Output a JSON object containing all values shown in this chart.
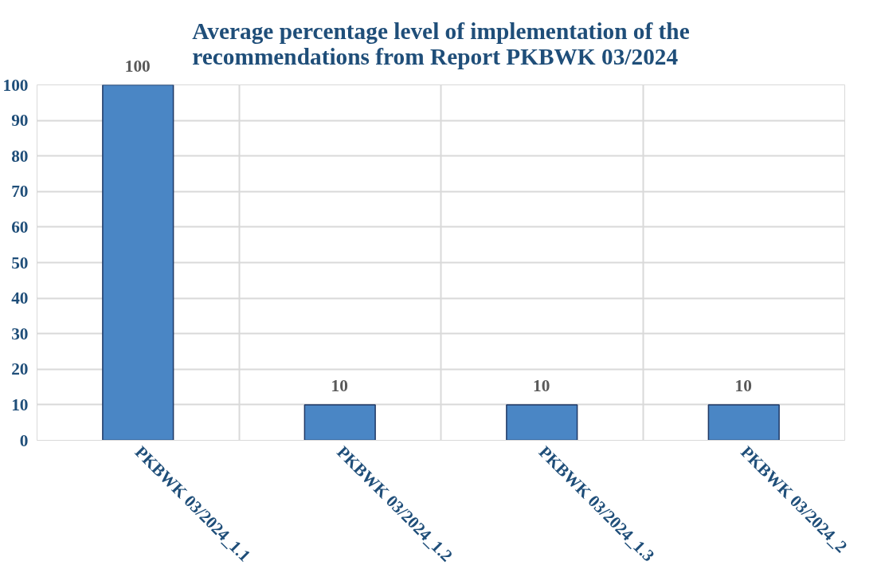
{
  "chart_data": {
    "type": "bar",
    "title": "Average percentage level of implementation of the\nrecommendations from Report PKBWK 03/2024",
    "categories": [
      "PKBWK 03/2024_1.1",
      "PKBWK 03/2024_1.2",
      "PKBWK 03/2024_1.3",
      "PKBWK 03/2024_2"
    ],
    "values": [
      100,
      10,
      10,
      10
    ],
    "color": "#4a86c5",
    "ylim": [
      0,
      100
    ],
    "yticks": [
      0,
      10,
      20,
      30,
      40,
      50,
      60,
      70,
      80,
      90,
      100
    ],
    "grid": true,
    "data_labels": true
  }
}
